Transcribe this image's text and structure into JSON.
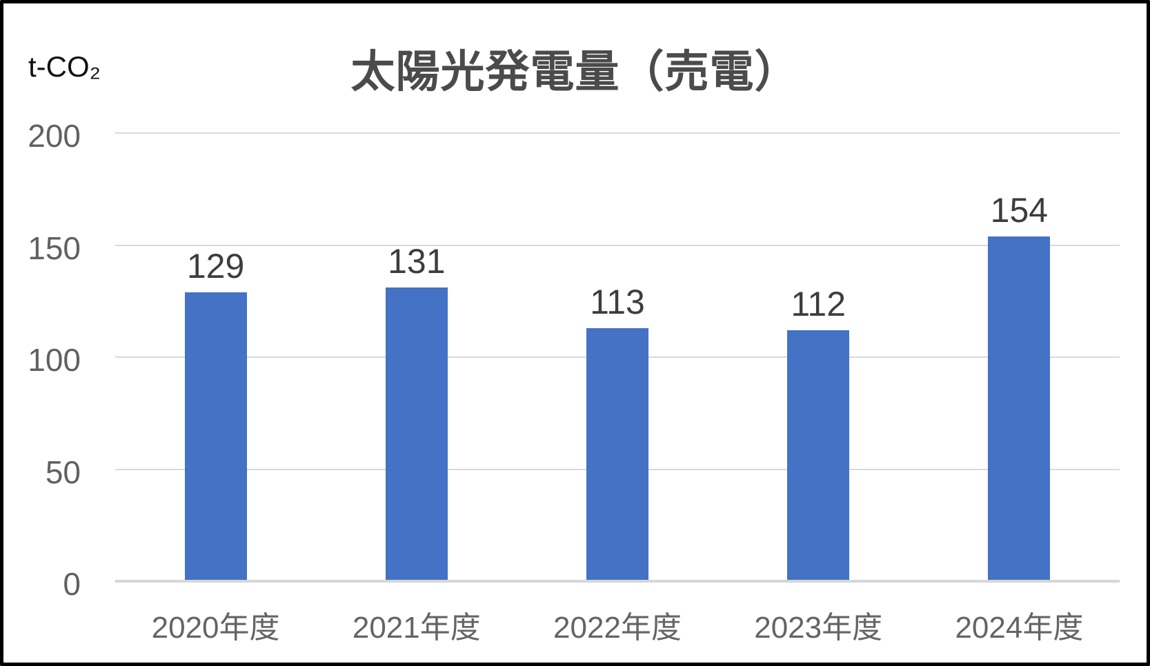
{
  "page": {
    "background": "#ffffff",
    "border_color": "#000000"
  },
  "chart_data": {
    "type": "bar",
    "title": "太陽光発電量（売電）",
    "unit_label": "t-CO₂",
    "categories": [
      "2020年度",
      "2021年度",
      "2022年度",
      "2023年度",
      "2024年度"
    ],
    "values": [
      129,
      131,
      113,
      112,
      154
    ],
    "data_labels": [
      "129",
      "131",
      "113",
      "112",
      "154"
    ],
    "xlabel": "",
    "ylabel": "t-CO₂",
    "ylim": [
      0,
      200
    ],
    "yticks": [
      0,
      50,
      100,
      150,
      200
    ],
    "grid": true,
    "legend_position": "none",
    "colors": {
      "bar": "#4472C4",
      "title": "#4b4b4b",
      "data_label": "#3d3d3d",
      "tick_label": "#616161",
      "category_label": "#646464",
      "gridline": "#d9d9d9",
      "axis_line": "#d6d6d6"
    }
  }
}
